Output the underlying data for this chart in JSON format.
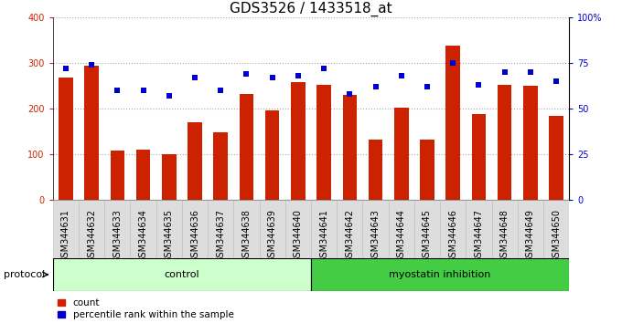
{
  "title": "GDS3526 / 1433518_at",
  "samples": [
    "GSM344631",
    "GSM344632",
    "GSM344633",
    "GSM344634",
    "GSM344635",
    "GSM344636",
    "GSM344637",
    "GSM344638",
    "GSM344639",
    "GSM344640",
    "GSM344641",
    "GSM344642",
    "GSM344643",
    "GSM344644",
    "GSM344645",
    "GSM344646",
    "GSM344647",
    "GSM344648",
    "GSM344649",
    "GSM344650"
  ],
  "counts": [
    268,
    295,
    108,
    110,
    100,
    170,
    148,
    233,
    197,
    258,
    252,
    230,
    133,
    202,
    133,
    338,
    188,
    252,
    250,
    185
  ],
  "percentiles": [
    72,
    74,
    60,
    60,
    57,
    67,
    60,
    69,
    67,
    68,
    72,
    58,
    62,
    68,
    62,
    75,
    63,
    70,
    70,
    65
  ],
  "control_count": 10,
  "bar_color": "#cc2200",
  "dot_color": "#0000cc",
  "control_bg": "#ccffcc",
  "myostatin_bg": "#44cc44",
  "grid_color": "#aaaaaa",
  "bg_color": "#ffffff",
  "ylim_left": [
    0,
    400
  ],
  "ylim_right": [
    0,
    100
  ],
  "yticks_left": [
    0,
    100,
    200,
    300,
    400
  ],
  "yticks_right": [
    0,
    25,
    50,
    75,
    100
  ],
  "yticklabels_right": [
    "0",
    "25",
    "50",
    "75",
    "100%"
  ],
  "legend_count_label": "count",
  "legend_pct_label": "percentile rank within the sample",
  "protocol_label": "protocol",
  "control_label": "control",
  "myostatin_label": "myostatin inhibition",
  "title_fontsize": 11,
  "tick_fontsize": 7,
  "label_fontsize": 8,
  "bar_width": 0.55
}
